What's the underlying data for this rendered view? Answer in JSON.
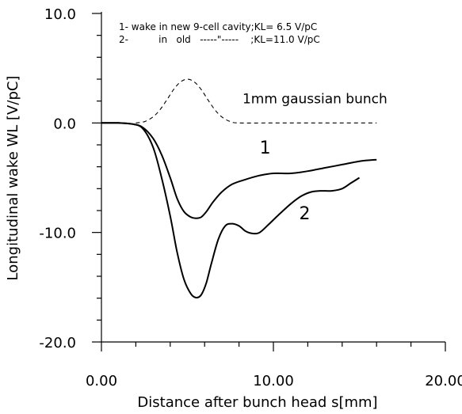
{
  "chart_data": {
    "type": "line",
    "xlabel": "Distance after bunch head s[mm]",
    "ylabel": "Longitudinal wake WL [V/pC]",
    "xlim": [
      0,
      20
    ],
    "ylim": [
      -20,
      10
    ],
    "x_ticks": [
      0,
      10,
      20
    ],
    "x_tick_labels": [
      "0.00",
      "10.00",
      "20.00"
    ],
    "y_ticks": [
      10,
      0,
      -10,
      -20
    ],
    "y_tick_labels": [
      "10.0",
      "0.0",
      "-10.0",
      "-20.0"
    ],
    "grid": false,
    "legend": {
      "placement": "top",
      "entries": [
        "1- wake in new 9-cell cavity;KL= 6.5 V/pC",
        "2-          in   old   -----\"-----    ;KL=11.0 V/pC"
      ]
    },
    "annotations": [
      {
        "text": "1mm gaussian bunch",
        "x": 8.2,
        "y": 1.8
      }
    ],
    "series": [
      {
        "label": "1",
        "label_at": {
          "x": 9.2,
          "y": -2.8
        },
        "style": "solid",
        "x": [
          0,
          1.0,
          1.8,
          2.4,
          3.0,
          3.5,
          4.0,
          4.4,
          4.8,
          5.2,
          5.5,
          5.8,
          6.1,
          6.5,
          7.0,
          7.6,
          8.3,
          9.2,
          10.0,
          11.0,
          12.0,
          13.0,
          14.0,
          15.0,
          16.0
        ],
        "y": [
          0,
          0,
          -0.1,
          -0.4,
          -1.4,
          -2.9,
          -5.0,
          -6.9,
          -8.1,
          -8.6,
          -8.7,
          -8.6,
          -8.1,
          -7.2,
          -6.3,
          -5.6,
          -5.2,
          -4.8,
          -4.6,
          -4.6,
          -4.4,
          -4.1,
          -3.8,
          -3.5,
          -3.35
        ]
      },
      {
        "label": "2",
        "label_at": {
          "x": 11.5,
          "y": -8.8
        },
        "style": "solid",
        "x": [
          0,
          1.0,
          1.8,
          2.4,
          3.0,
          3.5,
          4.0,
          4.4,
          4.8,
          5.2,
          5.5,
          5.8,
          6.1,
          6.4,
          6.8,
          7.2,
          7.6,
          8.0,
          8.4,
          8.8,
          9.2,
          9.7,
          10.3,
          11.0,
          11.6,
          12.2,
          12.8,
          13.4,
          14.0,
          14.5,
          15.0
        ],
        "y": [
          0,
          0,
          -0.1,
          -0.5,
          -2.2,
          -5.0,
          -8.5,
          -11.8,
          -14.3,
          -15.6,
          -15.95,
          -15.7,
          -14.6,
          -12.8,
          -10.6,
          -9.4,
          -9.2,
          -9.4,
          -9.9,
          -10.1,
          -10.0,
          -9.3,
          -8.4,
          -7.4,
          -6.7,
          -6.3,
          -6.2,
          -6.2,
          -6.0,
          -5.5,
          -5.0
        ]
      },
      {
        "label": "1mm gaussian bunch",
        "style": "dashed",
        "x": [
          2.0,
          2.5,
          3.0,
          3.4,
          3.8,
          4.2,
          4.6,
          5.0,
          5.4,
          5.8,
          6.2,
          6.6,
          7.0,
          7.5,
          8.0,
          10.0,
          12.0,
          14.0,
          16.0
        ],
        "y": [
          0.0,
          0.12,
          0.55,
          1.2,
          2.1,
          3.05,
          3.75,
          4.0,
          3.75,
          3.05,
          2.1,
          1.2,
          0.55,
          0.12,
          0.0,
          0.0,
          0.0,
          0.0,
          0.0
        ]
      }
    ]
  }
}
